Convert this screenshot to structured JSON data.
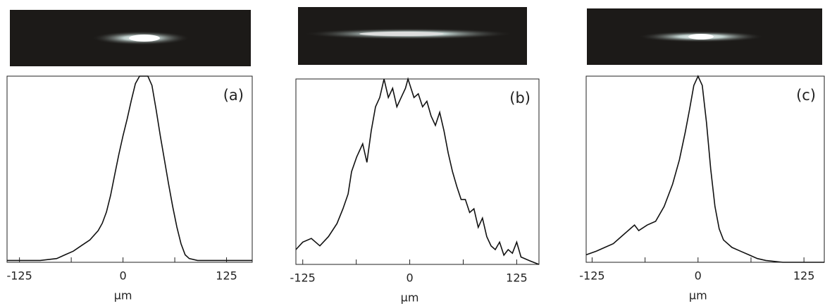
{
  "chart_data": [
    {
      "type": "line",
      "annotation": "(a)",
      "x_label": "μm",
      "xlim": [
        -140,
        156
      ],
      "xticks": [
        -125,
        0,
        125
      ],
      "xminorticks": [
        -62.5,
        62.5
      ],
      "ylim": [
        0,
        1
      ],
      "series": [
        {
          "color": "#111111",
          "x": [
            -140,
            -120,
            -100,
            -80,
            -70,
            -60,
            -50,
            -40,
            -30,
            -25,
            -20,
            -15,
            -10,
            -5,
            0,
            5,
            10,
            15,
            20,
            25,
            30,
            35,
            40,
            45,
            50,
            55,
            60,
            65,
            70,
            75,
            80,
            90,
            110,
            130,
            156
          ],
          "values": [
            0.01,
            0.01,
            0.01,
            0.02,
            0.04,
            0.06,
            0.09,
            0.12,
            0.17,
            0.21,
            0.27,
            0.36,
            0.47,
            0.58,
            0.68,
            0.77,
            0.87,
            0.96,
            1.0,
            1.0,
            1.0,
            0.95,
            0.82,
            0.68,
            0.55,
            0.42,
            0.3,
            0.19,
            0.1,
            0.04,
            0.02,
            0.01,
            0.01,
            0.01,
            0.01
          ]
        }
      ]
    },
    {
      "type": "line",
      "annotation": "(b)",
      "x_label": "μm",
      "xlim": [
        -133,
        151
      ],
      "xticks": [
        -125,
        0,
        125
      ],
      "xminorticks": [
        -62.5,
        62.5
      ],
      "ylim": [
        0,
        1
      ],
      "series": [
        {
          "color": "#111111",
          "x": [
            -133,
            -125,
            -115,
            -105,
            -95,
            -85,
            -78,
            -72,
            -68,
            -62,
            -55,
            -50,
            -45,
            -40,
            -35,
            -30,
            -25,
            -20,
            -15,
            -10,
            -5,
            -2,
            5,
            10,
            15,
            20,
            25,
            30,
            35,
            40,
            45,
            50,
            55,
            60,
            65,
            70,
            75,
            80,
            85,
            90,
            95,
            100,
            105,
            110,
            115,
            120,
            125,
            130,
            140,
            151
          ],
          "values": [
            0.08,
            0.12,
            0.14,
            0.1,
            0.15,
            0.22,
            0.3,
            0.38,
            0.5,
            0.58,
            0.65,
            0.55,
            0.72,
            0.85,
            0.9,
            1.0,
            0.9,
            0.95,
            0.85,
            0.9,
            0.95,
            1.0,
            0.9,
            0.92,
            0.85,
            0.88,
            0.8,
            0.75,
            0.82,
            0.72,
            0.6,
            0.5,
            0.42,
            0.35,
            0.35,
            0.28,
            0.3,
            0.2,
            0.25,
            0.15,
            0.1,
            0.08,
            0.12,
            0.05,
            0.08,
            0.06,
            0.12,
            0.04,
            0.02,
            0.0
          ]
        }
      ]
    },
    {
      "type": "line",
      "annotation": "(c)",
      "x_label": "μm",
      "xlim": [
        -132,
        149
      ],
      "xticks": [
        -125,
        0,
        125
      ],
      "xminorticks": [
        -62.5,
        62.5
      ],
      "ylim": [
        0,
        1
      ],
      "series": [
        {
          "color": "#111111",
          "x": [
            -132,
            -120,
            -110,
            -100,
            -90,
            -80,
            -75,
            -70,
            -60,
            -50,
            -40,
            -30,
            -22,
            -15,
            -10,
            -5,
            0,
            5,
            10,
            15,
            20,
            25,
            30,
            40,
            50,
            60,
            70,
            80,
            100,
            149
          ],
          "values": [
            0.04,
            0.06,
            0.08,
            0.1,
            0.14,
            0.18,
            0.2,
            0.17,
            0.2,
            0.22,
            0.3,
            0.42,
            0.55,
            0.7,
            0.82,
            0.95,
            1.0,
            0.95,
            0.75,
            0.5,
            0.3,
            0.18,
            0.12,
            0.08,
            0.06,
            0.04,
            0.02,
            0.01,
            0.0,
            0.0
          ]
        }
      ]
    }
  ]
}
